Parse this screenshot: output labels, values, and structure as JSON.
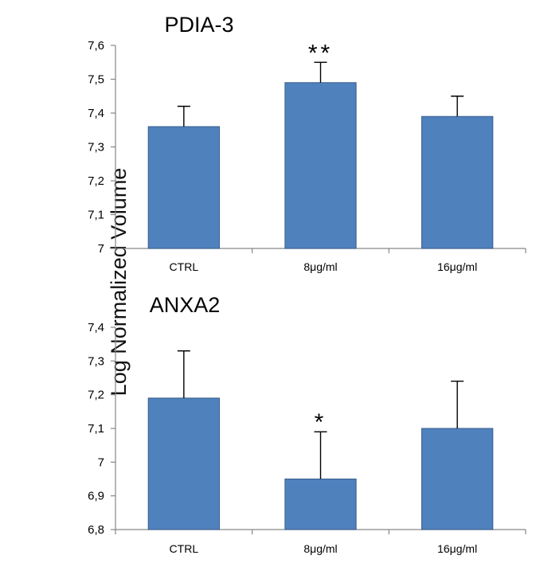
{
  "shared_ylabel": "Log Normalized Volume",
  "colors": {
    "bar": "#4F81BD",
    "bar_edge": "#385D8A",
    "axis": "#868686",
    "text": "#000000"
  },
  "chart_data": [
    {
      "type": "bar",
      "title": "PDIA-3",
      "categories": [
        "CTRL",
        "8μg/ml",
        "16μg/ml"
      ],
      "values": [
        7.36,
        7.49,
        7.39
      ],
      "errors": [
        0.06,
        0.06,
        0.06
      ],
      "significance": [
        "",
        "**",
        ""
      ],
      "ylim": [
        7.0,
        7.6
      ],
      "yticks": [
        "7",
        "7,1",
        "7,2",
        "7,3",
        "7,4",
        "7,5",
        "7,6"
      ],
      "ytick_values": [
        7.0,
        7.1,
        7.2,
        7.3,
        7.4,
        7.5,
        7.6
      ],
      "ylabel": "Log Normalized Volume",
      "xlabel": "",
      "grid": false
    },
    {
      "type": "bar",
      "title": "ANXA2",
      "categories": [
        "CTRL",
        "8μg/ml",
        "16μg/ml"
      ],
      "values": [
        7.19,
        6.95,
        7.1
      ],
      "errors": [
        0.14,
        0.14,
        0.14
      ],
      "significance": [
        "",
        "*",
        ""
      ],
      "ylim": [
        6.8,
        7.4
      ],
      "yticks": [
        "6,8",
        "6,9",
        "7",
        "7,1",
        "7,2",
        "7,3",
        "7,4"
      ],
      "ytick_values": [
        6.8,
        6.9,
        7.0,
        7.1,
        7.2,
        7.3,
        7.4
      ],
      "ylabel": "Log Normalized Volume",
      "xlabel": "",
      "grid": false
    }
  ]
}
